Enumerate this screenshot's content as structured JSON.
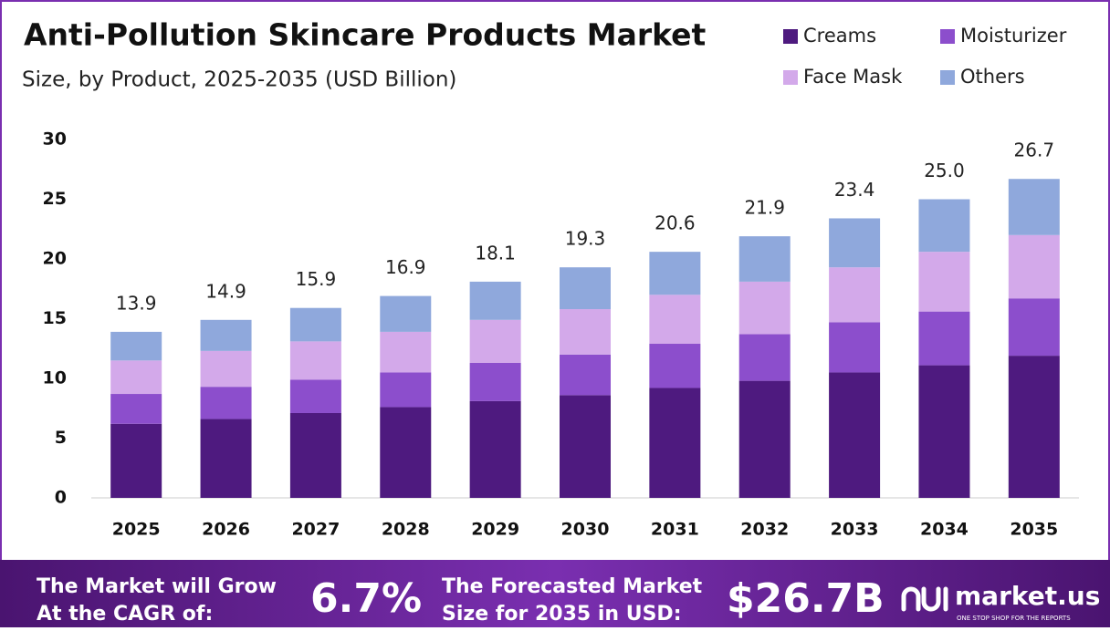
{
  "chart_data": {
    "type": "stacked-bar",
    "title": "Anti-Pollution Skincare Products Market",
    "subtitle": "Size, by Product, 2025-2035 (USD Billion)",
    "categories": [
      "2025",
      "2026",
      "2027",
      "2028",
      "2029",
      "2030",
      "2031",
      "2032",
      "2033",
      "2034",
      "2035"
    ],
    "series": [
      {
        "name": "Creams",
        "color": "#4e1a7f",
        "values": [
          6.2,
          6.6,
          7.1,
          7.6,
          8.1,
          8.6,
          9.2,
          9.8,
          10.5,
          11.1,
          11.9
        ]
      },
      {
        "name": "Moisturizer",
        "color": "#8c4ecc",
        "values": [
          2.5,
          2.7,
          2.8,
          2.9,
          3.2,
          3.4,
          3.7,
          3.9,
          4.2,
          4.5,
          4.8
        ]
      },
      {
        "name": "Face Mask",
        "color": "#d3a9ea",
        "values": [
          2.8,
          3.0,
          3.2,
          3.4,
          3.6,
          3.8,
          4.1,
          4.4,
          4.6,
          5.0,
          5.3
        ]
      },
      {
        "name": "Others",
        "color": "#8fa8dc",
        "values": [
          2.4,
          2.6,
          2.8,
          3.0,
          3.2,
          3.5,
          3.6,
          3.8,
          4.1,
          4.4,
          4.7
        ]
      }
    ],
    "totals": [
      13.9,
      14.9,
      15.9,
      16.9,
      18.1,
      19.3,
      20.6,
      21.9,
      23.4,
      25.0,
      26.7
    ],
    "total_labels": [
      "13.9",
      "14.9",
      "15.9",
      "16.9",
      "18.1",
      "19.3",
      "20.6",
      "21.9",
      "23.4",
      "25.0",
      "26.7"
    ],
    "ylim": [
      0,
      30
    ],
    "yticks": [
      0,
      5,
      10,
      15,
      20,
      25,
      30
    ],
    "grid": false,
    "legend": "top-right"
  },
  "footer": {
    "cagr_text": [
      "The Market will Grow",
      "At the CAGR of:"
    ],
    "cagr_value": "6.7%",
    "forecast_text": [
      "The Forecasted Market",
      "Size for 2035 in USD:"
    ],
    "forecast_value": "$26.7B",
    "brand": "market.us",
    "tagline": "ONE STOP SHOP FOR THE REPORTS"
  }
}
